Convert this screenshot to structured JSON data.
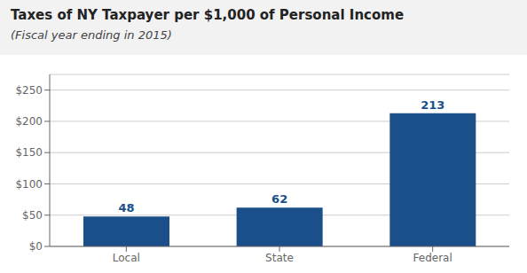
{
  "chart_data": {
    "type": "bar",
    "title": "Taxes of NY Taxpayer per $1,000 of Personal Income",
    "subtitle": "(Fiscal year ending in 2015)",
    "categories": [
      "Local",
      "State",
      "Federal"
    ],
    "values": [
      48,
      62,
      213
    ],
    "color": "#1a4f8a",
    "ylim": [
      0,
      275
    ],
    "yticks": [
      {
        "value": 0,
        "label": "$0"
      },
      {
        "value": 50,
        "label": "$50"
      },
      {
        "value": 100,
        "label": "$100"
      },
      {
        "value": 150,
        "label": "$150"
      },
      {
        "value": 200,
        "label": "$200"
      },
      {
        "value": 250,
        "label": "$250"
      }
    ],
    "grid": true,
    "data_labels": true
  }
}
